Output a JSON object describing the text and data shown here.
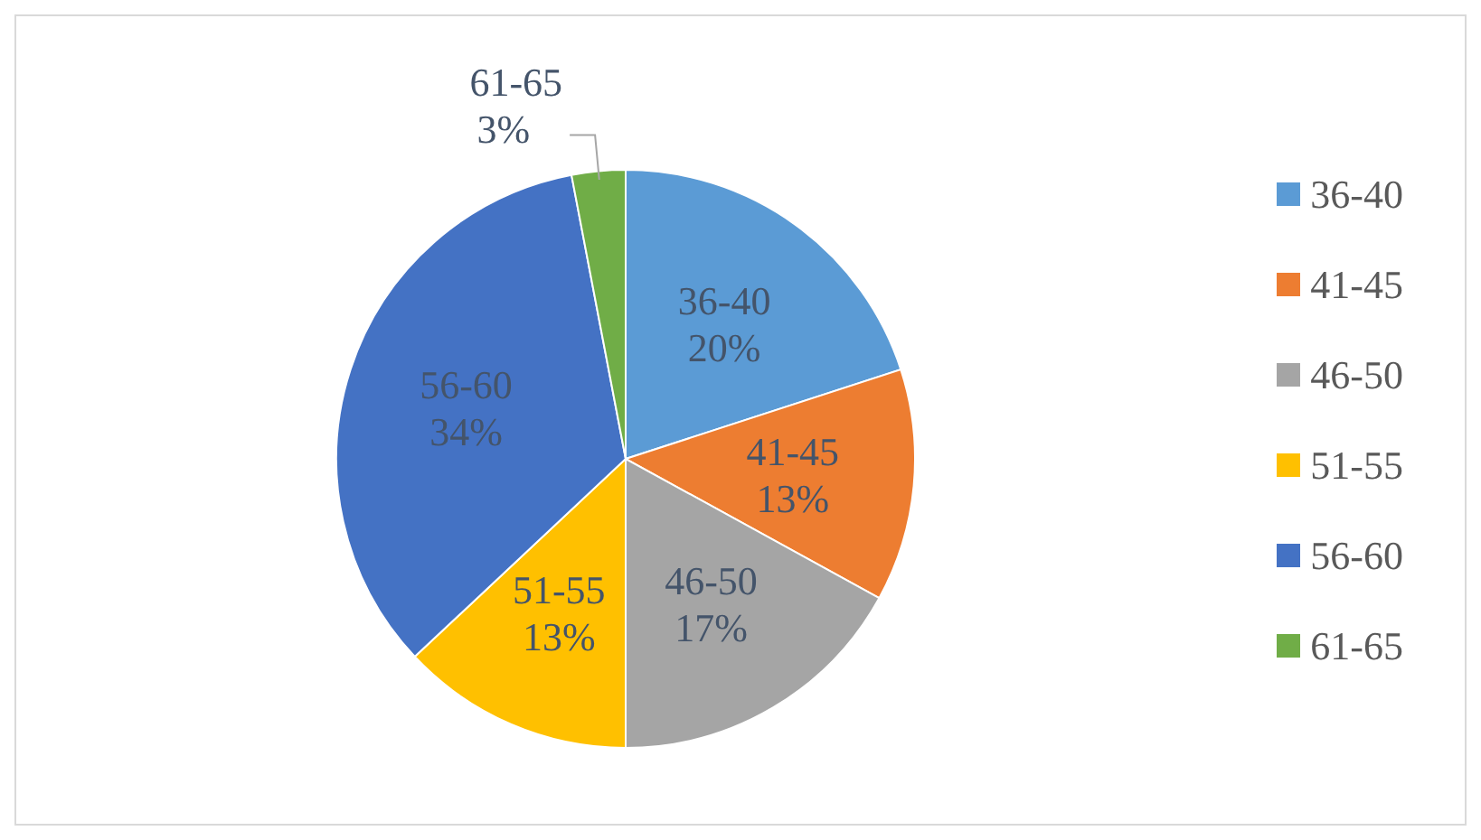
{
  "chart_data": {
    "type": "pie",
    "categories": [
      "36-40",
      "41-45",
      "46-50",
      "51-55",
      "56-60",
      "61-65"
    ],
    "values": [
      20,
      13,
      17,
      13,
      34,
      3
    ],
    "colors": [
      "#5b9bd5",
      "#ed7d31",
      "#a5a5a5",
      "#ffc000",
      "#4472c4",
      "#70ad47"
    ],
    "value_labels": [
      "20%",
      "13%",
      "17%",
      "13%",
      "34%",
      "3%"
    ],
    "legend": "right"
  }
}
